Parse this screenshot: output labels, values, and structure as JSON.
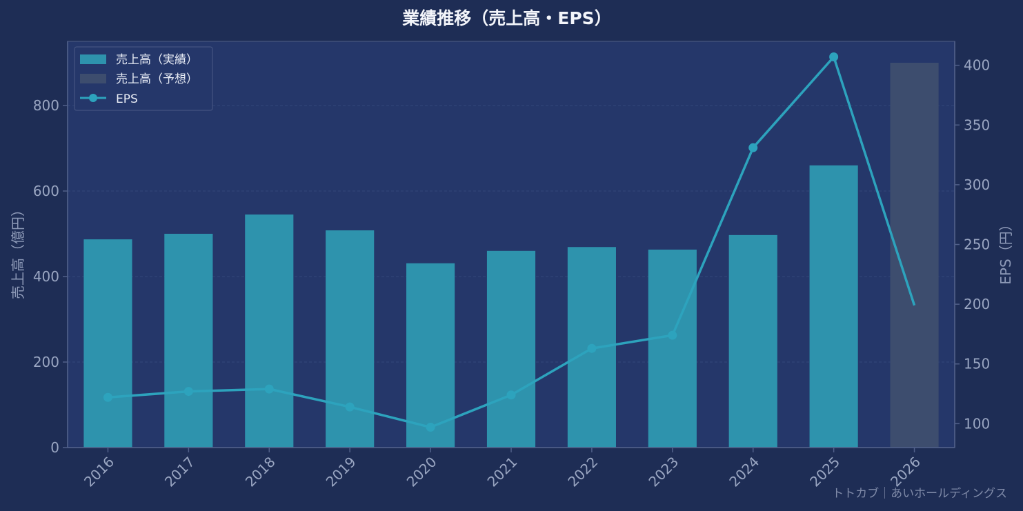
{
  "colors": {
    "background": "#1e2d55",
    "plot_background": "#25376a",
    "actual_bar": "#2e93ad",
    "forecast_bar": "#3d4d6e",
    "eps_line": "#2da3bd",
    "grid": "#33477a",
    "axis": "#51608a"
  },
  "watermark": "トトカブ｜あいホールディングス",
  "chart_data": {
    "type": "bar",
    "title": "業績推移（売上高・EPS）",
    "xlabel": "",
    "ylabel": "売上高（億円）",
    "y2label": "EPS（円）",
    "categories": [
      "2016",
      "2017",
      "2018",
      "2019",
      "2020",
      "2021",
      "2022",
      "2023",
      "2024",
      "2025",
      "2026"
    ],
    "ylim": [
      0,
      950
    ],
    "y2lim": [
      80,
      420
    ],
    "yticks": [
      0,
      200,
      400,
      600,
      800
    ],
    "y2ticks": [
      100,
      150,
      200,
      250,
      300,
      350,
      400
    ],
    "grid": true,
    "legend_position": "top-left",
    "series": [
      {
        "name": "売上高（実績）",
        "kind": "bar",
        "axis": "left",
        "values": [
          487,
          500,
          545,
          508,
          431,
          460,
          469,
          463,
          497,
          660,
          null
        ]
      },
      {
        "name": "売上高（予想）",
        "kind": "bar",
        "axis": "left",
        "values": [
          null,
          null,
          null,
          null,
          null,
          null,
          null,
          null,
          null,
          null,
          900
        ]
      },
      {
        "name": "EPS",
        "kind": "line",
        "axis": "right",
        "values": [
          122,
          127,
          129,
          114,
          97,
          124,
          163,
          174,
          331,
          407,
          199
        ]
      }
    ]
  }
}
